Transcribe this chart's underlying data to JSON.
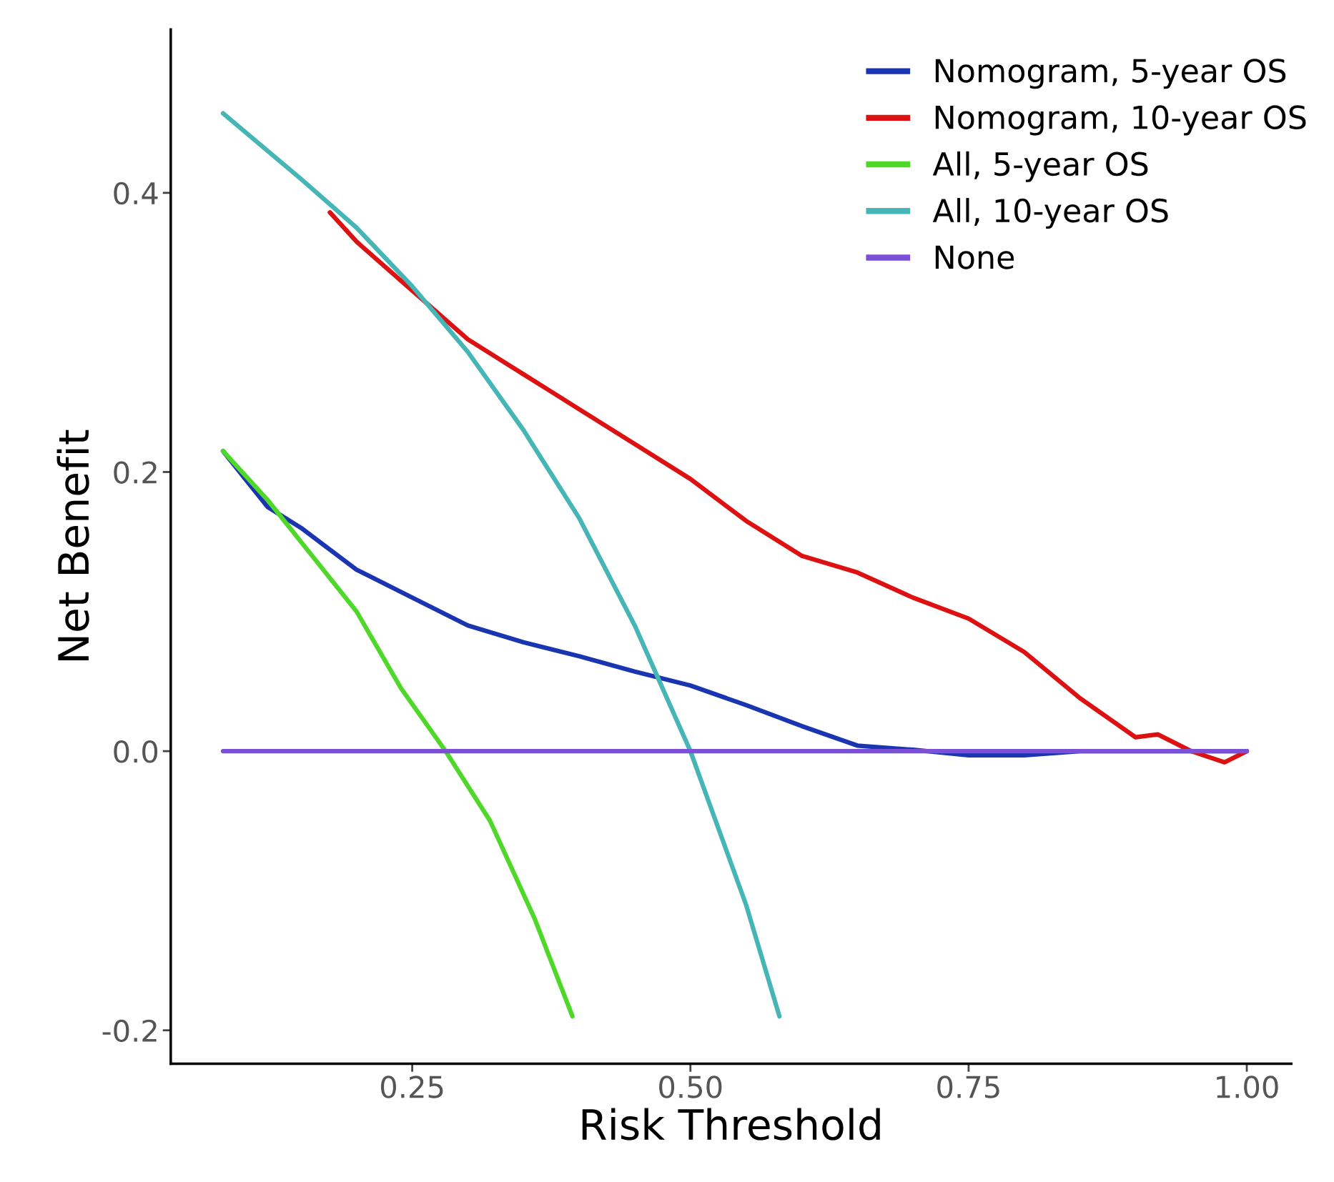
{
  "chart_data": {
    "type": "line",
    "xlabel": "Risk Threshold",
    "ylabel": "Net Benefit",
    "xlim": [
      0.033,
      1.04
    ],
    "ylim": [
      -0.224,
      0.517
    ],
    "xticks": [
      {
        "value": 0.25,
        "label": "0.25"
      },
      {
        "value": 0.5,
        "label": "0.50"
      },
      {
        "value": 0.75,
        "label": "0.75"
      },
      {
        "value": 1.0,
        "label": "1.00"
      }
    ],
    "yticks": [
      {
        "value": -0.2,
        "label": "-0.2"
      },
      {
        "value": 0.0,
        "label": "0.0"
      },
      {
        "value": 0.2,
        "label": "0.2"
      },
      {
        "value": 0.4,
        "label": "0.4"
      }
    ],
    "grid": false,
    "legend": "top right",
    "marker": "none",
    "line_style": "solid",
    "series": [
      {
        "name": "Nomogram, 5-year OS",
        "color": "#1a35b0",
        "x": [
          0.08,
          0.12,
          0.15,
          0.2,
          0.25,
          0.3,
          0.35,
          0.4,
          0.45,
          0.5,
          0.55,
          0.6,
          0.65,
          0.7,
          0.75,
          0.8,
          0.85,
          0.9,
          1.0
        ],
        "values": [
          0.215,
          0.175,
          0.16,
          0.13,
          0.11,
          0.09,
          0.078,
          0.068,
          0.057,
          0.047,
          0.033,
          0.018,
          0.004,
          0.001,
          -0.003,
          -0.003,
          0.0,
          0.0,
          0.0
        ]
      },
      {
        "name": "Nomogram, 10-year OS",
        "color": "#dd1111",
        "x": [
          0.176,
          0.2,
          0.25,
          0.3,
          0.35,
          0.4,
          0.45,
          0.5,
          0.55,
          0.6,
          0.65,
          0.7,
          0.75,
          0.8,
          0.85,
          0.9,
          0.92,
          0.95,
          0.98,
          1.0
        ],
        "values": [
          0.386,
          0.365,
          0.33,
          0.295,
          0.27,
          0.245,
          0.22,
          0.195,
          0.165,
          0.14,
          0.128,
          0.11,
          0.095,
          0.071,
          0.038,
          0.01,
          0.012,
          0.0,
          -0.008,
          0.0
        ]
      },
      {
        "name": "All, 5-year OS",
        "color": "#4fd82a",
        "x": [
          0.08,
          0.12,
          0.16,
          0.2,
          0.24,
          0.28,
          0.32,
          0.36,
          0.394
        ],
        "values": [
          0.215,
          0.18,
          0.14,
          0.1,
          0.045,
          0.0,
          -0.05,
          -0.12,
          -0.19
        ]
      },
      {
        "name": "All, 10-year OS",
        "color": "#45b5b5",
        "x": [
          0.08,
          0.15,
          0.2,
          0.25,
          0.3,
          0.35,
          0.4,
          0.45,
          0.5,
          0.55,
          0.58
        ],
        "values": [
          0.457,
          0.41,
          0.375,
          0.333,
          0.286,
          0.23,
          0.167,
          0.09,
          0.0,
          -0.11,
          -0.19
        ]
      },
      {
        "name": "None",
        "color": "#7b4fd6",
        "x": [
          0.08,
          1.0
        ],
        "values": [
          0.0,
          0.0
        ]
      }
    ]
  }
}
